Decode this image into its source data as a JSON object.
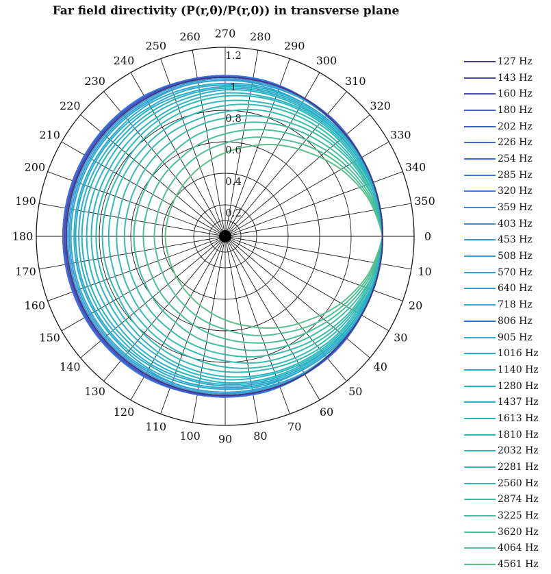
{
  "chart_data": {
    "type": "line",
    "subtype": "polar",
    "title": "Far field directivity (P(r,θ)/P(r,0)) in transverse plane",
    "angle_unit": "degrees",
    "angle_zero": "right",
    "angle_direction": "clockwise",
    "theta_ticks": [
      0,
      10,
      20,
      30,
      40,
      50,
      60,
      70,
      80,
      90,
      100,
      110,
      120,
      130,
      140,
      150,
      160,
      170,
      180,
      190,
      200,
      210,
      220,
      230,
      240,
      250,
      260,
      270,
      280,
      290,
      300,
      310,
      320,
      330,
      340,
      350
    ],
    "r_ticks": [
      0.2,
      0.4,
      0.6,
      0.8,
      1,
      1.2
    ],
    "r_tick_labels": [
      "0.2",
      "0.4",
      "0.6",
      "0.8",
      "1",
      "1.2"
    ],
    "rlim": [
      0,
      1.2
    ],
    "grid": true,
    "legend_position": "right",
    "sample_angles": [
      0,
      15,
      30,
      45,
      60,
      75,
      90,
      105,
      120,
      135,
      150,
      165,
      180
    ],
    "series": [
      {
        "name": "127 Hz",
        "color": "#433b86",
        "values": [
          1,
          1,
          1,
          1,
          1.01,
          1.01,
          1.01,
          1.01,
          1.01,
          1.01,
          1.01,
          1.01,
          1.01
        ]
      },
      {
        "name": "143 Hz",
        "color": "#4545a0",
        "values": [
          1,
          1,
          1,
          1,
          1.01,
          1.01,
          1.01,
          1.01,
          1.01,
          1.01,
          1.01,
          1.01,
          1.01
        ]
      },
      {
        "name": "160 Hz",
        "color": "#4a4eb5",
        "values": [
          1,
          1,
          1,
          1,
          1.01,
          1.01,
          1.01,
          1.01,
          1.01,
          1.01,
          1.01,
          1.02,
          1.02
        ]
      },
      {
        "name": "180 Hz",
        "color": "#4656c4",
        "values": [
          1,
          1,
          1,
          1,
          1.01,
          1.01,
          1.01,
          1.01,
          1.02,
          1.02,
          1.02,
          1.02,
          1.02
        ]
      },
      {
        "name": "202 Hz",
        "color": "#3d5fd0",
        "values": [
          1,
          1,
          1,
          1,
          1.01,
          1.01,
          1.01,
          1.02,
          1.02,
          1.02,
          1.02,
          1.02,
          1.02
        ]
      },
      {
        "name": "226 Hz",
        "color": "#4867da",
        "values": [
          1,
          1,
          1,
          1.01,
          1.01,
          1.01,
          1.02,
          1.02,
          1.02,
          1.02,
          1.03,
          1.03,
          1.03
        ]
      },
      {
        "name": "254 Hz",
        "color": "#3b6ee0",
        "values": [
          1,
          1,
          1,
          1.01,
          1.01,
          1.01,
          1.02,
          1.02,
          1.02,
          1.03,
          1.03,
          1.03,
          1.03
        ]
      },
      {
        "name": "285 Hz",
        "color": "#3a77e2",
        "values": [
          1,
          1,
          1,
          1.01,
          1.01,
          1.02,
          1.02,
          1.02,
          1.03,
          1.03,
          1.03,
          1.03,
          1.03
        ]
      },
      {
        "name": "320 Hz",
        "color": "#3a80e0",
        "values": [
          1,
          1,
          1,
          1.01,
          1.01,
          1.02,
          1.02,
          1.02,
          1.03,
          1.03,
          1.03,
          1.03,
          1.03
        ]
      },
      {
        "name": "359 Hz",
        "color": "#3688dc",
        "values": [
          1,
          1,
          1,
          1.01,
          1.01,
          1.02,
          1.02,
          1.02,
          1.03,
          1.03,
          1.03,
          1.03,
          1.03
        ]
      },
      {
        "name": "403 Hz",
        "color": "#3690d8",
        "values": [
          1,
          1,
          1,
          1.01,
          1.01,
          1.01,
          1.02,
          1.02,
          1.02,
          1.02,
          1.03,
          1.03,
          1.03
        ]
      },
      {
        "name": "453 Hz",
        "color": "#3597d6",
        "values": [
          1,
          1,
          1,
          1.01,
          1.01,
          1.01,
          1.01,
          1.02,
          1.02,
          1.02,
          1.02,
          1.02,
          1.02
        ]
      },
      {
        "name": "508 Hz",
        "color": "#3a9bd6",
        "values": [
          1,
          1,
          1,
          1,
          1.01,
          1.01,
          1.01,
          1.01,
          1.01,
          1.01,
          1.01,
          1.01,
          1.01
        ]
      },
      {
        "name": "570 Hz",
        "color": "#399fd4",
        "values": [
          1,
          1,
          1,
          1,
          1,
          1,
          1,
          1,
          1,
          1,
          1,
          1,
          1
        ]
      },
      {
        "name": "640 Hz",
        "color": "#33a2d0",
        "values": [
          1,
          1,
          1,
          1,
          1,
          1,
          0.99,
          0.99,
          0.99,
          0.99,
          0.99,
          0.99,
          0.99
        ]
      },
      {
        "name": "718 Hz",
        "color": "#2ea6cd",
        "values": [
          1,
          1,
          1,
          1,
          1,
          0.99,
          0.99,
          0.99,
          0.98,
          0.98,
          0.98,
          0.98,
          0.98
        ]
      },
      {
        "name": "806 Hz",
        "color": "#2b6cc4",
        "values": [
          1,
          1,
          1,
          1,
          1.01,
          1.01,
          1.01,
          1.02,
          1.02,
          1.02,
          1.02,
          1.02,
          1.02
        ]
      },
      {
        "name": "905 Hz",
        "color": "#2ba9cc",
        "values": [
          1,
          1,
          0.99,
          0.99,
          0.98,
          0.98,
          0.97,
          0.97,
          0.97,
          0.96,
          0.96,
          0.96,
          0.96
        ]
      },
      {
        "name": "1016 Hz",
        "color": "#2aabcb",
        "values": [
          1,
          1,
          0.99,
          0.99,
          0.98,
          0.97,
          0.96,
          0.96,
          0.95,
          0.95,
          0.95,
          0.95,
          0.95
        ]
      },
      {
        "name": "1140 Hz",
        "color": "#29adc9",
        "values": [
          1,
          0.99,
          0.99,
          0.98,
          0.97,
          0.96,
          0.95,
          0.94,
          0.94,
          0.93,
          0.93,
          0.93,
          0.93
        ]
      },
      {
        "name": "1280 Hz",
        "color": "#29b0c6",
        "values": [
          1,
          0.99,
          0.98,
          0.97,
          0.96,
          0.95,
          0.94,
          0.93,
          0.92,
          0.91,
          0.91,
          0.91,
          0.91
        ]
      },
      {
        "name": "1437 Hz",
        "color": "#2ab3c4",
        "values": [
          1,
          0.99,
          0.98,
          0.97,
          0.95,
          0.94,
          0.93,
          0.91,
          0.9,
          0.89,
          0.88,
          0.88,
          0.88
        ]
      },
      {
        "name": "1613 Hz",
        "color": "#2bb5c1",
        "values": [
          1,
          0.99,
          0.98,
          0.96,
          0.94,
          0.92,
          0.91,
          0.89,
          0.87,
          0.86,
          0.85,
          0.85,
          0.85
        ]
      },
      {
        "name": "1810 Hz",
        "color": "#2db8bd",
        "values": [
          1,
          0.99,
          0.97,
          0.95,
          0.93,
          0.91,
          0.89,
          0.87,
          0.85,
          0.83,
          0.82,
          0.82,
          0.82
        ]
      },
      {
        "name": "2032 Hz",
        "color": "#30b9b8",
        "values": [
          1,
          0.99,
          0.96,
          0.94,
          0.91,
          0.88,
          0.86,
          0.84,
          0.82,
          0.8,
          0.78,
          0.78,
          0.78
        ]
      },
      {
        "name": "2281 Hz",
        "color": "#33bab3",
        "values": [
          1,
          0.98,
          0.95,
          0.92,
          0.89,
          0.86,
          0.83,
          0.8,
          0.78,
          0.76,
          0.75,
          0.74,
          0.74
        ]
      },
      {
        "name": "2560 Hz",
        "color": "#37bbad",
        "values": [
          1,
          0.98,
          0.94,
          0.9,
          0.86,
          0.83,
          0.79,
          0.76,
          0.74,
          0.72,
          0.7,
          0.69,
          0.69
        ]
      },
      {
        "name": "2874 Hz",
        "color": "#3bbca7",
        "values": [
          1,
          0.97,
          0.93,
          0.88,
          0.83,
          0.79,
          0.75,
          0.72,
          0.69,
          0.67,
          0.65,
          0.64,
          0.64
        ]
      },
      {
        "name": "3225 Hz",
        "color": "#40bda1",
        "values": [
          1,
          0.97,
          0.91,
          0.85,
          0.8,
          0.75,
          0.7,
          0.67,
          0.63,
          0.61,
          0.59,
          0.58,
          0.58
        ]
      },
      {
        "name": "3620 Hz",
        "color": "#48be9a",
        "values": [
          1,
          0.96,
          0.89,
          0.82,
          0.76,
          0.7,
          0.65,
          0.61,
          0.57,
          0.55,
          0.53,
          0.52,
          0.52
        ]
      },
      {
        "name": "4064 Hz",
        "color": "#51be93",
        "values": [
          1,
          0.95,
          0.87,
          0.79,
          0.71,
          0.65,
          0.59,
          0.55,
          0.51,
          0.48,
          0.46,
          0.45,
          0.45
        ]
      },
      {
        "name": "4561 Hz",
        "color": "#5bbf8c",
        "values": [
          1,
          0.94,
          0.85,
          0.75,
          0.67,
          0.59,
          0.53,
          0.48,
          0.44,
          0.41,
          0.39,
          0.38,
          0.38
        ]
      }
    ]
  }
}
